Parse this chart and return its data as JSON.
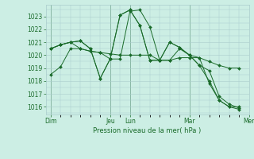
{
  "background_color": "#cceee4",
  "grid_color": "#aacccc",
  "line_color": "#1a6b2a",
  "marker_color": "#1a6b2a",
  "xlabel": "Pression niveau de la mer( hPa )",
  "ylim": [
    1015.4,
    1023.9
  ],
  "yticks": [
    1016,
    1017,
    1018,
    1019,
    1020,
    1021,
    1022,
    1023
  ],
  "series": [
    [
      1018.5,
      1019.1,
      1020.5,
      1020.5,
      1020.3,
      1020.2,
      1019.7,
      1019.7,
      1023.4,
      1023.5,
      1022.2,
      1019.6,
      1019.6,
      1020.5,
      1020.0,
      1019.8,
      1017.8,
      1016.5,
      1016.0,
      1015.8
    ],
    [
      1020.5,
      1020.8,
      1021.0,
      1020.5,
      1020.3,
      1020.2,
      1020.1,
      1020.0,
      1020.0,
      1020.0,
      1020.0,
      1019.6,
      1019.6,
      1019.8,
      1019.8,
      1019.8,
      1019.5,
      1019.2,
      1019.0,
      1019.0
    ],
    [
      1020.5,
      1020.8,
      1021.0,
      1021.1,
      1020.5,
      1018.2,
      1019.7,
      1023.1,
      1023.5,
      1022.3,
      1019.6,
      1019.6,
      1021.0,
      1020.6,
      1020.0,
      1019.2,
      1018.0,
      1016.5,
      1016.0,
      1016.0
    ],
    [
      1020.5,
      1020.8,
      1021.0,
      1021.1,
      1020.5,
      1018.2,
      1019.7,
      1023.1,
      1023.5,
      1022.3,
      1019.6,
      1019.6,
      1021.0,
      1020.6,
      1020.0,
      1019.2,
      1018.8,
      1016.8,
      1016.2,
      1015.9
    ]
  ],
  "x_count": 20,
  "vline_positions": [
    0,
    6,
    8,
    14,
    20
  ],
  "xtick_positions": [
    0,
    6,
    8,
    14,
    20
  ],
  "xtick_labels": [
    "Dim",
    "Jeu",
    "Lun",
    "Mar",
    "Mer"
  ]
}
